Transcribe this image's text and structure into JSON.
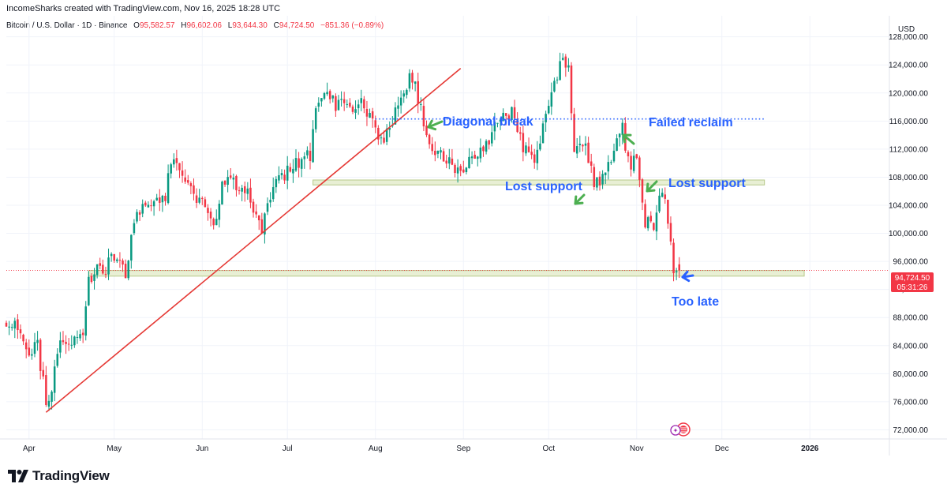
{
  "credit": "IncomeSharks created with TradingView.com, Nov 16, 2025 18:28 UTC",
  "symbol_title": "Bitcoin / U.S. Dollar · 1D · Binance",
  "ohlc": {
    "open_label": "O",
    "open": "95,582.57",
    "high_label": "H",
    "high": "96,602.06",
    "low_label": "L",
    "low": "93,644.30",
    "close_label": "C",
    "close": "94,724.50",
    "change": "−851.36 (−0.89%)"
  },
  "currency": "USD",
  "price_tag": {
    "price": "94,724.50",
    "countdown": "05:31:26",
    "color": "#f23645"
  },
  "brand": "TradingView",
  "colors": {
    "up": "#089981",
    "down": "#f23645",
    "annotation_text": "#2962ff",
    "arrow_green": "#4caf50",
    "trendline": "#e53935",
    "zone_fill": "#e8efd4"
  },
  "chart_data": {
    "type": "candlestick",
    "timeframe": "1D",
    "x_ticks": [
      "Apr",
      "May",
      "Jun",
      "Jul",
      "Aug",
      "Sep",
      "Oct",
      "Nov",
      "Dec",
      "2026"
    ],
    "y_ticks": [
      "72,000.00",
      "76,000.00",
      "80,000.00",
      "84,000.00",
      "88,000.00",
      "92,000.00",
      "96,000.00",
      "100,000.00",
      "104,000.00",
      "108,000.00",
      "112,000.00",
      "116,000.00",
      "120,000.00",
      "124,000.00",
      "128,000.00"
    ],
    "ylim": [
      70700,
      131000
    ],
    "xlim": [
      "2025-03-24",
      "2026-01-29"
    ],
    "close_path": [
      [
        "2025-03-24",
        87500
      ],
      [
        "2025-03-27",
        87000
      ],
      [
        "2025-03-31",
        82500
      ],
      [
        "2025-04-04",
        83800
      ],
      [
        "2025-04-07",
        76500
      ],
      [
        "2025-04-09",
        77500
      ],
      [
        "2025-04-11",
        83500
      ],
      [
        "2025-04-15",
        84500
      ],
      [
        "2025-04-20",
        85500
      ],
      [
        "2025-04-22",
        93000
      ],
      [
        "2025-04-25",
        94500
      ],
      [
        "2025-04-28",
        95000
      ],
      [
        "2025-05-01",
        96500
      ],
      [
        "2025-05-05",
        94500
      ],
      [
        "2025-05-09",
        103500
      ],
      [
        "2025-05-13",
        104000
      ],
      [
        "2025-05-19",
        105500
      ],
      [
        "2025-05-22",
        111500
      ],
      [
        "2025-05-25",
        108500
      ],
      [
        "2025-05-31",
        104500
      ],
      [
        "2025-06-05",
        101500
      ],
      [
        "2025-06-09",
        108000
      ],
      [
        "2025-06-16",
        106500
      ],
      [
        "2025-06-22",
        101000
      ],
      [
        "2025-06-27",
        107500
      ],
      [
        "2025-07-03",
        109500
      ],
      [
        "2025-07-09",
        111000
      ],
      [
        "2025-07-11",
        117500
      ],
      [
        "2025-07-14",
        121000
      ],
      [
        "2025-07-18",
        118500
      ],
      [
        "2025-07-24",
        118000
      ],
      [
        "2025-07-28",
        118500
      ],
      [
        "2025-08-02",
        113500
      ],
      [
        "2025-08-06",
        114500
      ],
      [
        "2025-08-10",
        119500
      ],
      [
        "2025-08-14",
        122500
      ],
      [
        "2025-08-17",
        118000
      ],
      [
        "2025-08-20",
        112000
      ],
      [
        "2025-08-25",
        110500
      ],
      [
        "2025-08-31",
        108500
      ],
      [
        "2025-09-04",
        111000
      ],
      [
        "2025-09-08",
        111500
      ],
      [
        "2025-09-12",
        115500
      ],
      [
        "2025-09-18",
        117000
      ],
      [
        "2025-09-22",
        112500
      ],
      [
        "2025-09-26",
        109500
      ],
      [
        "2025-10-01",
        118000
      ],
      [
        "2025-10-06",
        125000
      ],
      [
        "2025-10-08",
        123000
      ],
      [
        "2025-10-10",
        112000
      ],
      [
        "2025-10-14",
        113000
      ],
      [
        "2025-10-17",
        107000
      ],
      [
        "2025-10-21",
        108500
      ],
      [
        "2025-10-24",
        111500
      ],
      [
        "2025-10-27",
        115000
      ],
      [
        "2025-10-29",
        110000
      ],
      [
        "2025-11-01",
        110000
      ],
      [
        "2025-11-04",
        101500
      ],
      [
        "2025-11-07",
        101000
      ],
      [
        "2025-11-10",
        106000
      ],
      [
        "2025-11-13",
        99500
      ],
      [
        "2025-11-14",
        94800
      ],
      [
        "2025-11-16",
        94724.5
      ]
    ],
    "annotations": [
      {
        "type": "trendline",
        "from": [
          "2025-04-07",
          74500
        ],
        "to": [
          "2025-08-31",
          123500
        ],
        "color": "#e53935"
      },
      {
        "type": "dotted_level",
        "price": 116300,
        "from": "2025-08-01",
        "to": "2025-12-16",
        "color": "#2962ff"
      },
      {
        "type": "zone",
        "price_low": 106900,
        "price_high": 107600,
        "from": "2025-07-10",
        "to": "2025-12-16"
      },
      {
        "type": "zone",
        "price_low": 93900,
        "price_high": 94700,
        "from": "2025-04-22",
        "to": "2025-12-30"
      }
    ],
    "labels": {
      "diagonal_break": "Diagonal break",
      "failed_reclaim": "Failed reclaim",
      "lost_support_1": "Lost support",
      "lost_support_2": "Lost support",
      "too_late": "Too late"
    }
  }
}
